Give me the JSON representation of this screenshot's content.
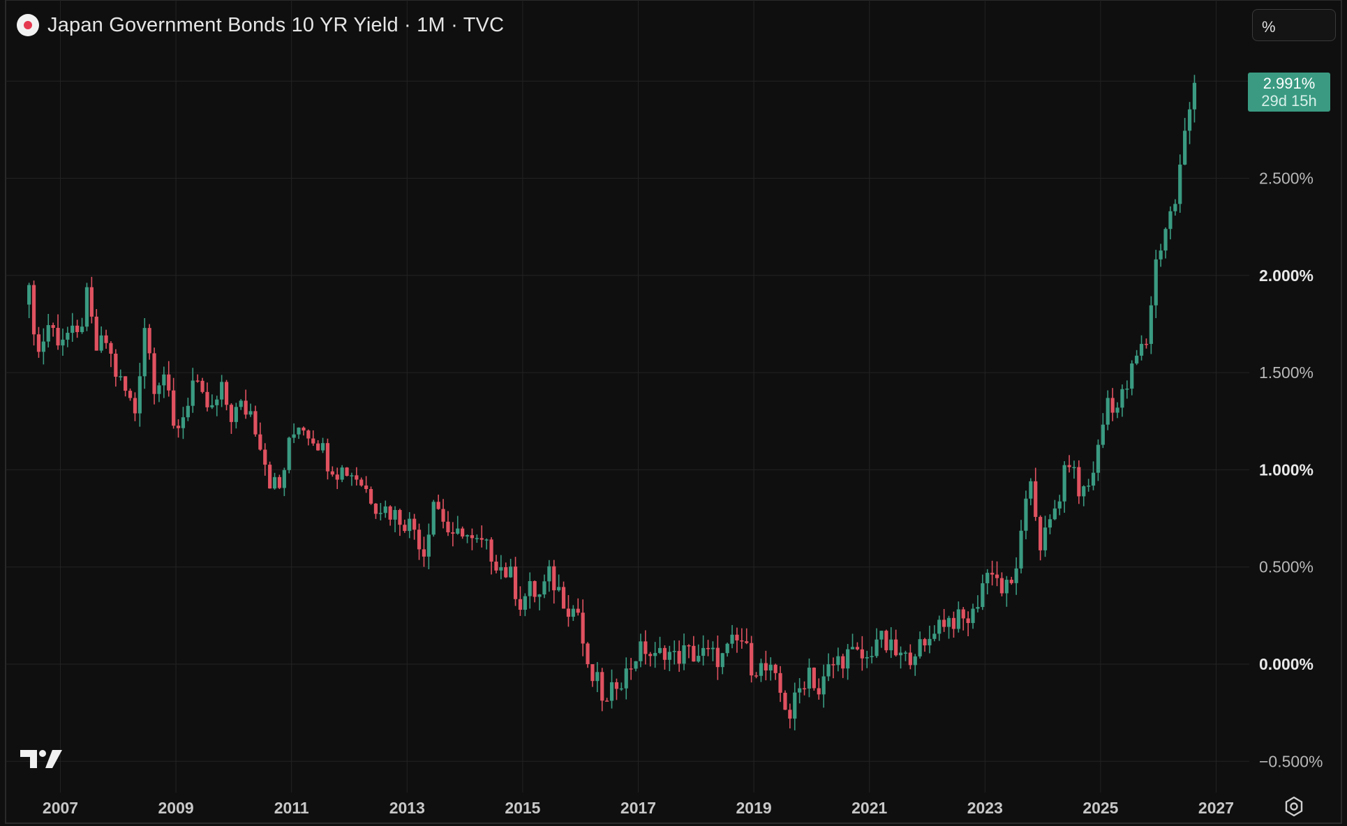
{
  "header": {
    "title": "Japan Government Bonds 10 YR Yield · 1M · TVC",
    "unit_label": "%"
  },
  "last_price": {
    "value_label": "2.991%",
    "countdown_label": "29d 15h"
  },
  "colors": {
    "background": "#0f0f0f",
    "up": "#3a9b82",
    "down": "#e05260",
    "grid": "#232323",
    "text": "#d1d4dc"
  },
  "chart_data": {
    "type": "candlestick",
    "title": "Japan Government Bonds 10 YR Yield · 1M · TVC",
    "timeframe": "1M",
    "unit": "%",
    "ylim": [
      -0.6,
      3.2
    ],
    "y_ticks": [
      {
        "value": -0.5,
        "label": "−0.500%"
      },
      {
        "value": 0,
        "label": "0.000%"
      },
      {
        "value": 0.5,
        "label": "0.500%"
      },
      {
        "value": 1,
        "label": "1.000%"
      },
      {
        "value": 1.5,
        "label": "1.500%"
      },
      {
        "value": 2,
        "label": "2.000%"
      },
      {
        "value": 2.5,
        "label": "2.500%"
      }
    ],
    "x_ticks": [
      "2007",
      "2009",
      "2011",
      "2013",
      "2015",
      "2017",
      "2019",
      "2021",
      "2023",
      "2025",
      "2027"
    ],
    "grid": true,
    "last_value": 2.991,
    "close_series": [
      [
        "2006-06",
        1.9
      ],
      [
        "2006-08",
        1.6
      ],
      [
        "2006-10",
        1.75
      ],
      [
        "2006-12",
        1.68
      ],
      [
        "2007-02",
        1.7
      ],
      [
        "2007-04",
        1.67
      ],
      [
        "2007-06",
        1.88
      ],
      [
        "2007-08",
        1.62
      ],
      [
        "2007-10",
        1.66
      ],
      [
        "2007-12",
        1.5
      ],
      [
        "2008-02",
        1.4
      ],
      [
        "2008-04",
        1.3
      ],
      [
        "2008-06",
        1.75
      ],
      [
        "2008-08",
        1.45
      ],
      [
        "2008-10",
        1.5
      ],
      [
        "2008-12",
        1.2
      ],
      [
        "2009-02",
        1.28
      ],
      [
        "2009-04",
        1.45
      ],
      [
        "2009-06",
        1.35
      ],
      [
        "2009-08",
        1.3
      ],
      [
        "2009-10",
        1.4
      ],
      [
        "2009-12",
        1.28
      ],
      [
        "2010-02",
        1.32
      ],
      [
        "2010-04",
        1.3
      ],
      [
        "2010-06",
        1.15
      ],
      [
        "2010-08",
        0.95
      ],
      [
        "2010-10",
        0.9
      ],
      [
        "2010-12",
        1.12
      ],
      [
        "2011-02",
        1.25
      ],
      [
        "2011-04",
        1.2
      ],
      [
        "2011-06",
        1.15
      ],
      [
        "2011-08",
        1.05
      ],
      [
        "2011-10",
        1.0
      ],
      [
        "2011-12",
        1.0
      ],
      [
        "2012-02",
        0.97
      ],
      [
        "2012-04",
        0.9
      ],
      [
        "2012-06",
        0.83
      ],
      [
        "2012-08",
        0.8
      ],
      [
        "2012-10",
        0.77
      ],
      [
        "2012-12",
        0.74
      ],
      [
        "2013-02",
        0.7
      ],
      [
        "2013-04",
        0.58
      ],
      [
        "2013-06",
        0.85
      ],
      [
        "2013-08",
        0.75
      ],
      [
        "2013-10",
        0.62
      ],
      [
        "2013-12",
        0.7
      ],
      [
        "2014-02",
        0.62
      ],
      [
        "2014-04",
        0.61
      ],
      [
        "2014-06",
        0.57
      ],
      [
        "2014-08",
        0.5
      ],
      [
        "2014-10",
        0.45
      ],
      [
        "2014-12",
        0.32
      ],
      [
        "2015-02",
        0.38
      ],
      [
        "2015-04",
        0.35
      ],
      [
        "2015-06",
        0.45
      ],
      [
        "2015-08",
        0.38
      ],
      [
        "2015-10",
        0.3
      ],
      [
        "2015-12",
        0.27
      ],
      [
        "2016-02",
        -0.05
      ],
      [
        "2016-04",
        -0.1
      ],
      [
        "2016-06",
        -0.22
      ],
      [
        "2016-08",
        -0.08
      ],
      [
        "2016-10",
        -0.05
      ],
      [
        "2016-12",
        0.05
      ],
      [
        "2017-02",
        0.08
      ],
      [
        "2017-04",
        0.02
      ],
      [
        "2017-06",
        0.08
      ],
      [
        "2017-08",
        0.03
      ],
      [
        "2017-10",
        0.06
      ],
      [
        "2017-12",
        0.05
      ],
      [
        "2018-02",
        0.05
      ],
      [
        "2018-04",
        0.04
      ],
      [
        "2018-06",
        0.03
      ],
      [
        "2018-08",
        0.1
      ],
      [
        "2018-10",
        0.12
      ],
      [
        "2018-12",
        0.0
      ],
      [
        "2019-02",
        -0.02
      ],
      [
        "2019-04",
        -0.05
      ],
      [
        "2019-06",
        -0.15
      ],
      [
        "2019-08",
        -0.26
      ],
      [
        "2019-10",
        -0.13
      ],
      [
        "2019-12",
        -0.02
      ],
      [
        "2020-02",
        -0.15
      ],
      [
        "2020-04",
        -0.03
      ],
      [
        "2020-06",
        0.02
      ],
      [
        "2020-08",
        0.05
      ],
      [
        "2020-10",
        0.04
      ],
      [
        "2020-12",
        0.02
      ],
      [
        "2021-02",
        0.14
      ],
      [
        "2021-04",
        0.09
      ],
      [
        "2021-06",
        0.05
      ],
      [
        "2021-08",
        0.02
      ],
      [
        "2021-10",
        0.09
      ],
      [
        "2021-12",
        0.07
      ],
      [
        "2022-02",
        0.2
      ],
      [
        "2022-04",
        0.23
      ],
      [
        "2022-06",
        0.23
      ],
      [
        "2022-08",
        0.22
      ],
      [
        "2022-10",
        0.25
      ],
      [
        "2022-12",
        0.42
      ],
      [
        "2023-02",
        0.5
      ],
      [
        "2023-04",
        0.38
      ],
      [
        "2023-06",
        0.4
      ],
      [
        "2023-08",
        0.64
      ],
      [
        "2023-10",
        0.95
      ],
      [
        "2023-12",
        0.62
      ],
      [
        "2024-02",
        0.71
      ],
      [
        "2024-04",
        0.87
      ],
      [
        "2024-06",
        1.06
      ],
      [
        "2024-08",
        0.88
      ],
      [
        "2024-10",
        0.92
      ],
      [
        "2024-12",
        1.1
      ],
      [
        "2025-02",
        1.37
      ],
      [
        "2025-04",
        1.32
      ],
      [
        "2025-06",
        1.43
      ],
      [
        "2025-08",
        1.58
      ],
      [
        "2025-10",
        1.66
      ],
      [
        "2025-12",
        2.07
      ],
      [
        "2026-02",
        2.25
      ],
      [
        "2026-04",
        2.38
      ],
      [
        "2026-06",
        2.72
      ],
      [
        "2026-08",
        2.991
      ]
    ]
  }
}
